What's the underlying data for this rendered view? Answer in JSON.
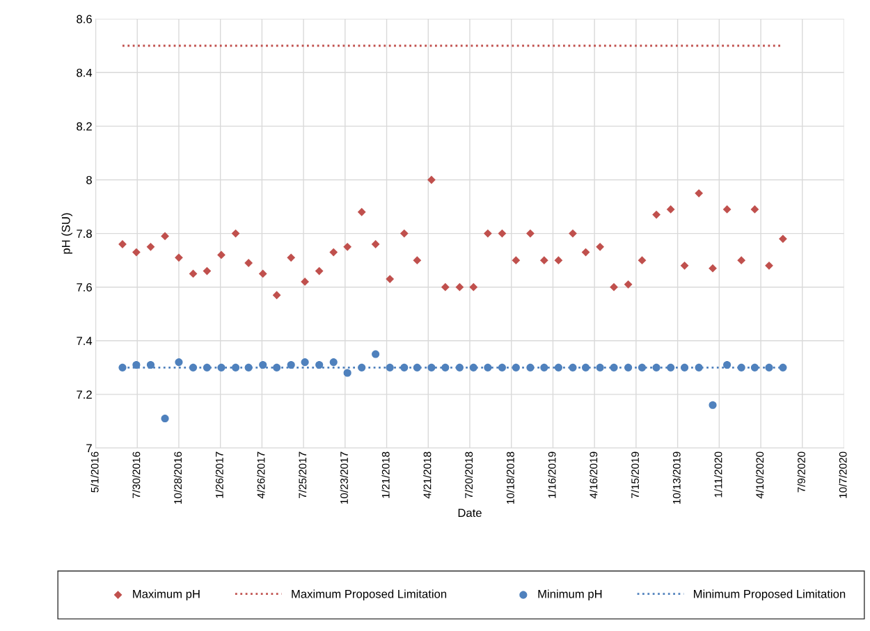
{
  "chart_data": {
    "type": "scatter",
    "xlabel": "Date",
    "ylabel": "pH (SU)",
    "x": [
      "2016-06-28",
      "2016-07-28",
      "2016-08-28",
      "2016-09-28",
      "2016-10-28",
      "2016-11-28",
      "2016-12-28",
      "2017-01-28",
      "2017-02-28",
      "2017-03-28",
      "2017-04-28",
      "2017-05-28",
      "2017-06-28",
      "2017-07-28",
      "2017-08-28",
      "2017-09-28",
      "2017-10-28",
      "2017-11-28",
      "2017-12-28",
      "2018-01-28",
      "2018-02-28",
      "2018-03-28",
      "2018-04-28",
      "2018-05-28",
      "2018-06-28",
      "2018-07-28",
      "2018-08-28",
      "2018-09-28",
      "2018-10-28",
      "2018-11-28",
      "2018-12-28",
      "2019-01-28",
      "2019-02-28",
      "2019-03-28",
      "2019-04-28",
      "2019-05-28",
      "2019-06-28",
      "2019-07-28",
      "2019-08-28",
      "2019-09-28",
      "2019-10-28",
      "2019-11-28",
      "2019-12-28",
      "2020-01-28",
      "2020-02-28",
      "2020-03-28",
      "2020-04-28",
      "2020-05-28"
    ],
    "series": [
      {
        "name": "Maximum pH",
        "marker": "diamond",
        "color": "#c0504d",
        "values": [
          7.76,
          7.73,
          7.75,
          7.79,
          7.71,
          7.65,
          7.66,
          7.72,
          7.8,
          7.69,
          7.65,
          7.57,
          7.71,
          7.62,
          7.66,
          7.73,
          7.75,
          7.88,
          7.76,
          7.63,
          7.8,
          7.7,
          8.0,
          7.6,
          7.6,
          7.6,
          7.8,
          7.8,
          7.7,
          7.8,
          7.7,
          7.7,
          7.8,
          7.73,
          7.75,
          7.6,
          7.61,
          7.7,
          7.87,
          7.89,
          7.68,
          7.95,
          7.67,
          7.89,
          7.7,
          7.89,
          7.68,
          7.78
        ]
      },
      {
        "name": "Maximum Proposed Limitation",
        "type": "line",
        "line_style": "dotted",
        "marker": "none",
        "color": "#c0504d",
        "x": [
          "2016-06-28",
          "2020-05-28"
        ],
        "values": [
          8.5,
          8.5
        ]
      },
      {
        "name": "Minimum pH",
        "marker": "circle",
        "color": "#4f81bd",
        "values": [
          7.3,
          7.31,
          7.31,
          7.11,
          7.32,
          7.3,
          7.3,
          7.3,
          7.3,
          7.3,
          7.31,
          7.3,
          7.31,
          7.32,
          7.31,
          7.32,
          7.28,
          7.3,
          7.35,
          7.3,
          7.3,
          7.3,
          7.3,
          7.3,
          7.3,
          7.3,
          7.3,
          7.3,
          7.3,
          7.3,
          7.3,
          7.3,
          7.3,
          7.3,
          7.3,
          7.3,
          7.3,
          7.3,
          7.3,
          7.3,
          7.3,
          7.3,
          7.16,
          7.31,
          7.3,
          7.3,
          7.3,
          7.3
        ]
      },
      {
        "name": "Minimum Proposed Limitation",
        "type": "line",
        "line_style": "dotted",
        "marker": "none",
        "color": "#4f81bd",
        "x": [
          "2016-06-28",
          "2020-05-28"
        ],
        "values": [
          7.3,
          7.3
        ]
      }
    ],
    "xlim": [
      "2016-05-01",
      "2020-10-07"
    ],
    "xticks": [
      {
        "value": "2016-05-01",
        "label": "5/1/2016"
      },
      {
        "value": "2016-07-30",
        "label": "7/30/2016"
      },
      {
        "value": "2016-10-28",
        "label": "10/28/2016"
      },
      {
        "value": "2017-01-26",
        "label": "1/26/2017"
      },
      {
        "value": "2017-04-26",
        "label": "4/26/2017"
      },
      {
        "value": "2017-07-25",
        "label": "7/25/2017"
      },
      {
        "value": "2017-10-23",
        "label": "10/23/2017"
      },
      {
        "value": "2018-01-21",
        "label": "1/21/2018"
      },
      {
        "value": "2018-04-21",
        "label": "4/21/2018"
      },
      {
        "value": "2018-07-20",
        "label": "7/20/2018"
      },
      {
        "value": "2018-10-18",
        "label": "10/18/2018"
      },
      {
        "value": "2019-01-16",
        "label": "1/16/2019"
      },
      {
        "value": "2019-04-16",
        "label": "4/16/2019"
      },
      {
        "value": "2019-07-15",
        "label": "7/15/2019"
      },
      {
        "value": "2019-10-13",
        "label": "10/13/2019"
      },
      {
        "value": "2020-01-11",
        "label": "1/11/2020"
      },
      {
        "value": "2020-04-10",
        "label": "4/10/2020"
      },
      {
        "value": "2020-07-09",
        "label": "7/9/2020"
      },
      {
        "value": "2020-10-07",
        "label": "10/7/2020"
      }
    ],
    "ylim": [
      7,
      8.6
    ],
    "yticks": [
      7,
      7.2,
      7.4,
      7.6,
      7.8,
      8,
      8.2,
      8.4,
      8.6
    ],
    "grid": true,
    "legend": "bottom"
  }
}
